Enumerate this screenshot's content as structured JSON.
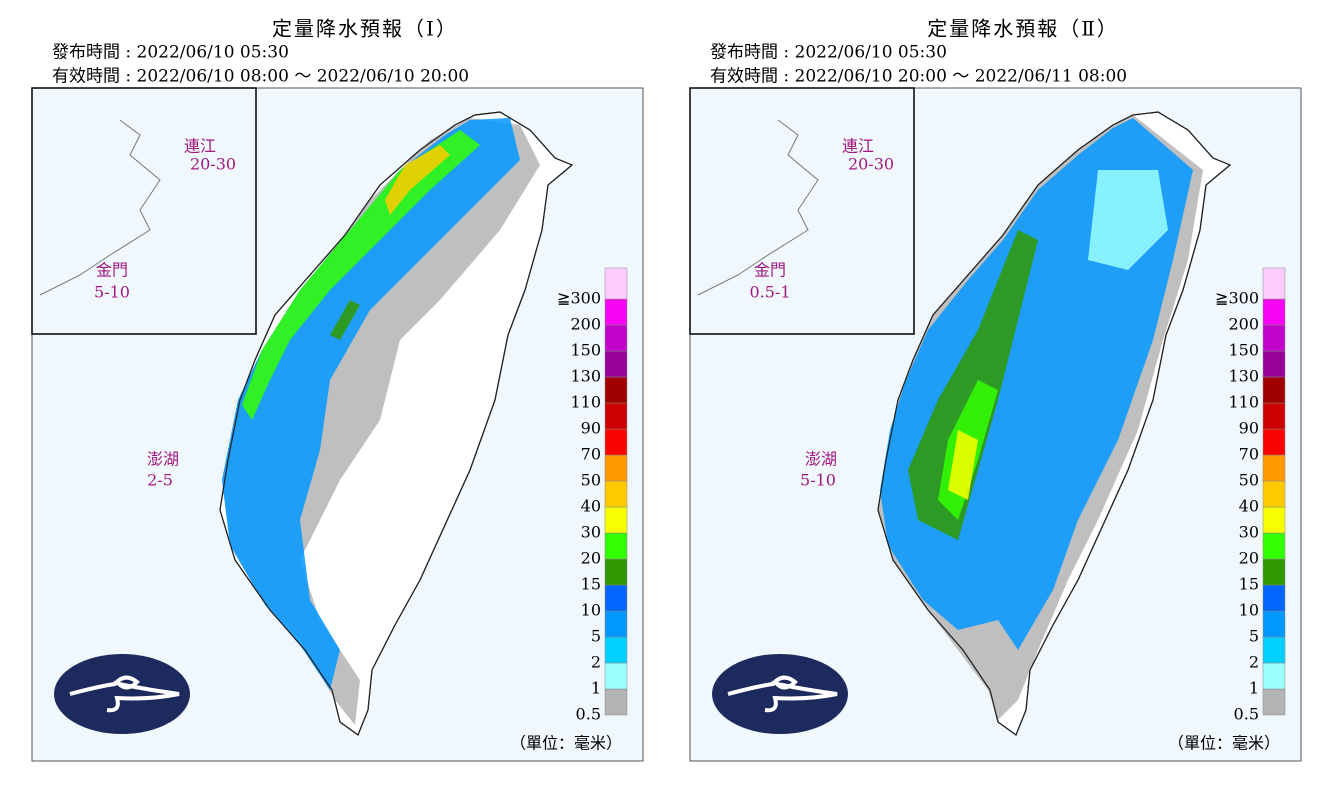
{
  "panels": [
    {
      "title": "定量降水預報（Ⅰ）",
      "issued": "發布時間 : 2022/06/10 05:30",
      "valid": "有效時間 : 2022/06/10 08:00 ～ 2022/06/10 20:00",
      "places": [
        {
          "name": "連江",
          "range": "20-30"
        },
        {
          "name": "金門",
          "range": "5-10"
        },
        {
          "name": "澎湖",
          "range": "2-5"
        }
      ]
    },
    {
      "title": "定量降水預報（Ⅱ）",
      "issued": "發布時間 : 2022/06/10 05:30",
      "valid": "有效時間 : 2022/06/10 20:00 ～ 2022/06/11 08:00",
      "places": [
        {
          "name": "連江",
          "range": "20-30"
        },
        {
          "name": "金門",
          "range": "0.5-1"
        },
        {
          "name": "澎湖",
          "range": "5-10"
        }
      ]
    }
  ],
  "legend": {
    "labels": [
      "0.5",
      "1",
      "2",
      "5",
      "10",
      "15",
      "20",
      "30",
      "40",
      "50",
      "70",
      "90",
      "110",
      "130",
      "150",
      "200",
      "≧300"
    ],
    "colors": [
      "#b4b4b4",
      "#9bffff",
      "#00cfff",
      "#0198ff",
      "#0165ff",
      "#309901",
      "#32ff00",
      "#f8ff00",
      "#ffcb00",
      "#ff9a00",
      "#fa0300",
      "#cc0003",
      "#a00000",
      "#98009a",
      "#c304cc",
      "#f805f3",
      "#fecbff"
    ]
  },
  "unit": "（單位：毫米）"
}
